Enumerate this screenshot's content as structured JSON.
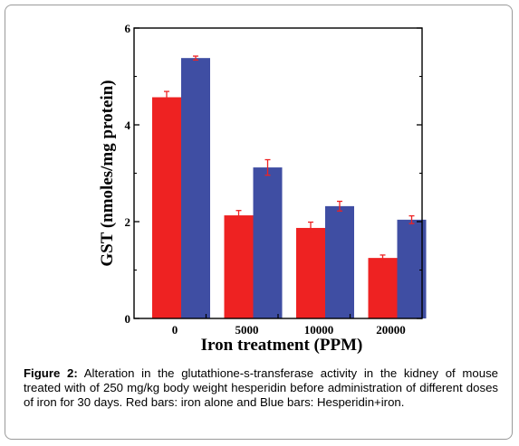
{
  "chart_data": {
    "type": "bar",
    "categories": [
      "0",
      "5000",
      "10000",
      "20000"
    ],
    "series": [
      {
        "values": [
          4.57,
          2.13,
          1.87,
          1.25
        ],
        "errors": [
          0.12,
          0.1,
          0.12,
          0.06
        ],
        "color": "#ee2222"
      },
      {
        "values": [
          5.38,
          3.12,
          2.32,
          2.04
        ],
        "errors": [
          0.04,
          0.16,
          0.1,
          0.08
        ],
        "color": "#3f4ea3"
      }
    ],
    "xlabel": "Iron treatment (PPM)",
    "ylabel": "GST (nmoles/mg protein)",
    "ylim": [
      0,
      6
    ],
    "yticks": [
      "0",
      "2",
      "4",
      "6"
    ],
    "error_bar_color": "#ee2222",
    "grid": false,
    "legend": "none"
  },
  "caption": {
    "label": "Figure 2:",
    "text": "Alteration in the glutathione-s-transferase activity in the kidney of mouse treated with of 250 mg/kg body weight hesperidin before administration of different doses of iron for 30 days. Red bars: iron alone and Blue bars: Hesperidin+iron."
  }
}
